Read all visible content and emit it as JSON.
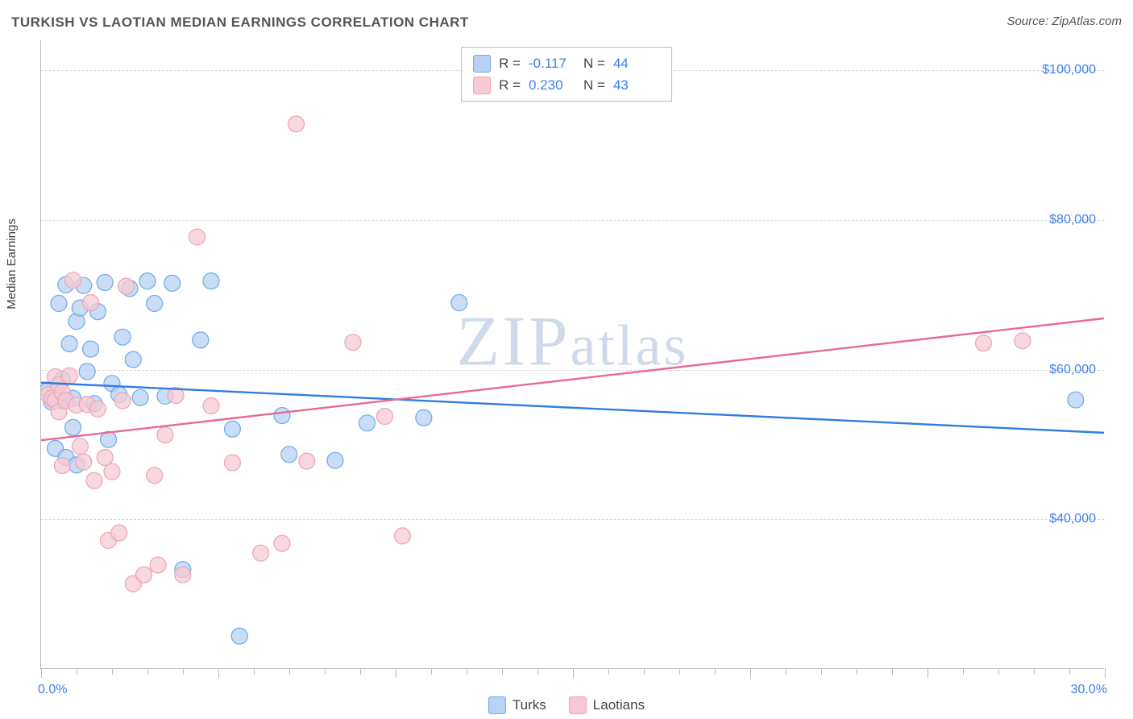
{
  "title": "TURKISH VS LAOTIAN MEDIAN EARNINGS CORRELATION CHART",
  "source_label": "Source: ZipAtlas.com",
  "y_axis_title": "Median Earnings",
  "watermark_text_prefix": "ZIP",
  "watermark_text_suffix": "atlas",
  "chart": {
    "type": "scatter",
    "x_range": [
      0.0,
      30.0
    ],
    "x_tick_step_major": 5.0,
    "x_tick_step_minor": 1.0,
    "x_min_label": "0.0%",
    "x_max_label": "30.0%",
    "y_range": [
      20000,
      104000
    ],
    "y_gridlines": [
      40000,
      60000,
      80000,
      100000
    ],
    "y_tick_labels": [
      "$40,000",
      "$60,000",
      "$80,000",
      "$100,000"
    ],
    "background_color": "#ffffff",
    "grid_color": "#d8d8d8",
    "axis_color": "#bbbbbb",
    "marker_radius": 10,
    "marker_stroke_width": 1.2,
    "trend_line_width": 2.4,
    "series": [
      {
        "name": "Turks",
        "color_fill": "#b7d2f4",
        "color_stroke": "#6fa9e6",
        "line_color": "#2f7de1",
        "R": "-0.117",
        "N": "44",
        "trend": {
          "x1": 0,
          "y1": 58200,
          "x2": 30,
          "y2": 51500
        },
        "points": [
          [
            0.2,
            57200
          ],
          [
            0.3,
            55600
          ],
          [
            0.4,
            49400
          ],
          [
            0.4,
            56900
          ],
          [
            0.5,
            68800
          ],
          [
            0.6,
            58600
          ],
          [
            0.6,
            55800
          ],
          [
            0.7,
            48200
          ],
          [
            0.7,
            71300
          ],
          [
            0.8,
            63400
          ],
          [
            0.9,
            52200
          ],
          [
            0.9,
            56100
          ],
          [
            1.0,
            66400
          ],
          [
            1.0,
            47200
          ],
          [
            1.1,
            68200
          ],
          [
            1.2,
            71200
          ],
          [
            1.3,
            59700
          ],
          [
            1.4,
            62700
          ],
          [
            1.5,
            55400
          ],
          [
            1.6,
            67700
          ],
          [
            1.8,
            71600
          ],
          [
            1.9,
            50600
          ],
          [
            2.0,
            58100
          ],
          [
            2.2,
            56600
          ],
          [
            2.3,
            64300
          ],
          [
            2.5,
            70800
          ],
          [
            2.6,
            61300
          ],
          [
            2.8,
            56200
          ],
          [
            3.0,
            71800
          ],
          [
            3.2,
            68800
          ],
          [
            3.5,
            56400
          ],
          [
            3.7,
            71500
          ],
          [
            4.0,
            33200
          ],
          [
            4.5,
            63900
          ],
          [
            4.8,
            71800
          ],
          [
            5.4,
            52000
          ],
          [
            5.6,
            24300
          ],
          [
            6.8,
            53800
          ],
          [
            7.0,
            48600
          ],
          [
            8.3,
            47800
          ],
          [
            9.2,
            52800
          ],
          [
            10.8,
            53500
          ],
          [
            11.8,
            68900
          ],
          [
            29.2,
            55900
          ]
        ]
      },
      {
        "name": "Laotians",
        "color_fill": "#f6c9d4",
        "color_stroke": "#eca3b6",
        "line_color": "#e86a8f",
        "R": "0.230",
        "N": "43",
        "trend": {
          "x1": 0,
          "y1": 50500,
          "x2": 30,
          "y2": 66800
        },
        "points": [
          [
            0.2,
            56600
          ],
          [
            0.3,
            56100
          ],
          [
            0.4,
            59000
          ],
          [
            0.4,
            55800
          ],
          [
            0.5,
            57900
          ],
          [
            0.5,
            54300
          ],
          [
            0.6,
            47100
          ],
          [
            0.6,
            56900
          ],
          [
            0.7,
            55800
          ],
          [
            0.8,
            59100
          ],
          [
            0.9,
            71900
          ],
          [
            1.0,
            55200
          ],
          [
            1.1,
            49700
          ],
          [
            1.2,
            47600
          ],
          [
            1.3,
            55300
          ],
          [
            1.4,
            68900
          ],
          [
            1.5,
            45100
          ],
          [
            1.6,
            54700
          ],
          [
            1.8,
            48200
          ],
          [
            1.9,
            37100
          ],
          [
            2.0,
            46300
          ],
          [
            2.2,
            38100
          ],
          [
            2.3,
            55800
          ],
          [
            2.4,
            71100
          ],
          [
            2.6,
            31300
          ],
          [
            2.9,
            32500
          ],
          [
            3.2,
            45800
          ],
          [
            3.3,
            33800
          ],
          [
            3.5,
            51200
          ],
          [
            3.8,
            56500
          ],
          [
            4.0,
            32500
          ],
          [
            4.4,
            77700
          ],
          [
            4.8,
            55100
          ],
          [
            5.4,
            47500
          ],
          [
            6.2,
            35400
          ],
          [
            6.8,
            36700
          ],
          [
            7.2,
            92800
          ],
          [
            7.5,
            47700
          ],
          [
            8.8,
            63600
          ],
          [
            9.7,
            53700
          ],
          [
            10.2,
            37700
          ],
          [
            26.6,
            63500
          ],
          [
            27.7,
            63800
          ]
        ]
      }
    ]
  },
  "legend_top": [
    {
      "swatch_fill": "#b7d2f4",
      "swatch_stroke": "#6fa9e6",
      "r_label": "R =",
      "r_value": "-0.117",
      "n_label": "N =",
      "n_value": "44"
    },
    {
      "swatch_fill": "#f6c9d4",
      "swatch_stroke": "#eca3b6",
      "r_label": "R =",
      "r_value": "0.230",
      "n_label": "N =",
      "n_value": "43"
    }
  ],
  "legend_bottom": [
    {
      "swatch_fill": "#b7d2f4",
      "swatch_stroke": "#6fa9e6",
      "label": "Turks"
    },
    {
      "swatch_fill": "#f6c9d4",
      "swatch_stroke": "#eca3b6",
      "label": "Laotians"
    }
  ],
  "colors": {
    "title_text": "#555555",
    "axis_label_text": "#3d7ff0",
    "watermark": "#cfd9ea"
  }
}
